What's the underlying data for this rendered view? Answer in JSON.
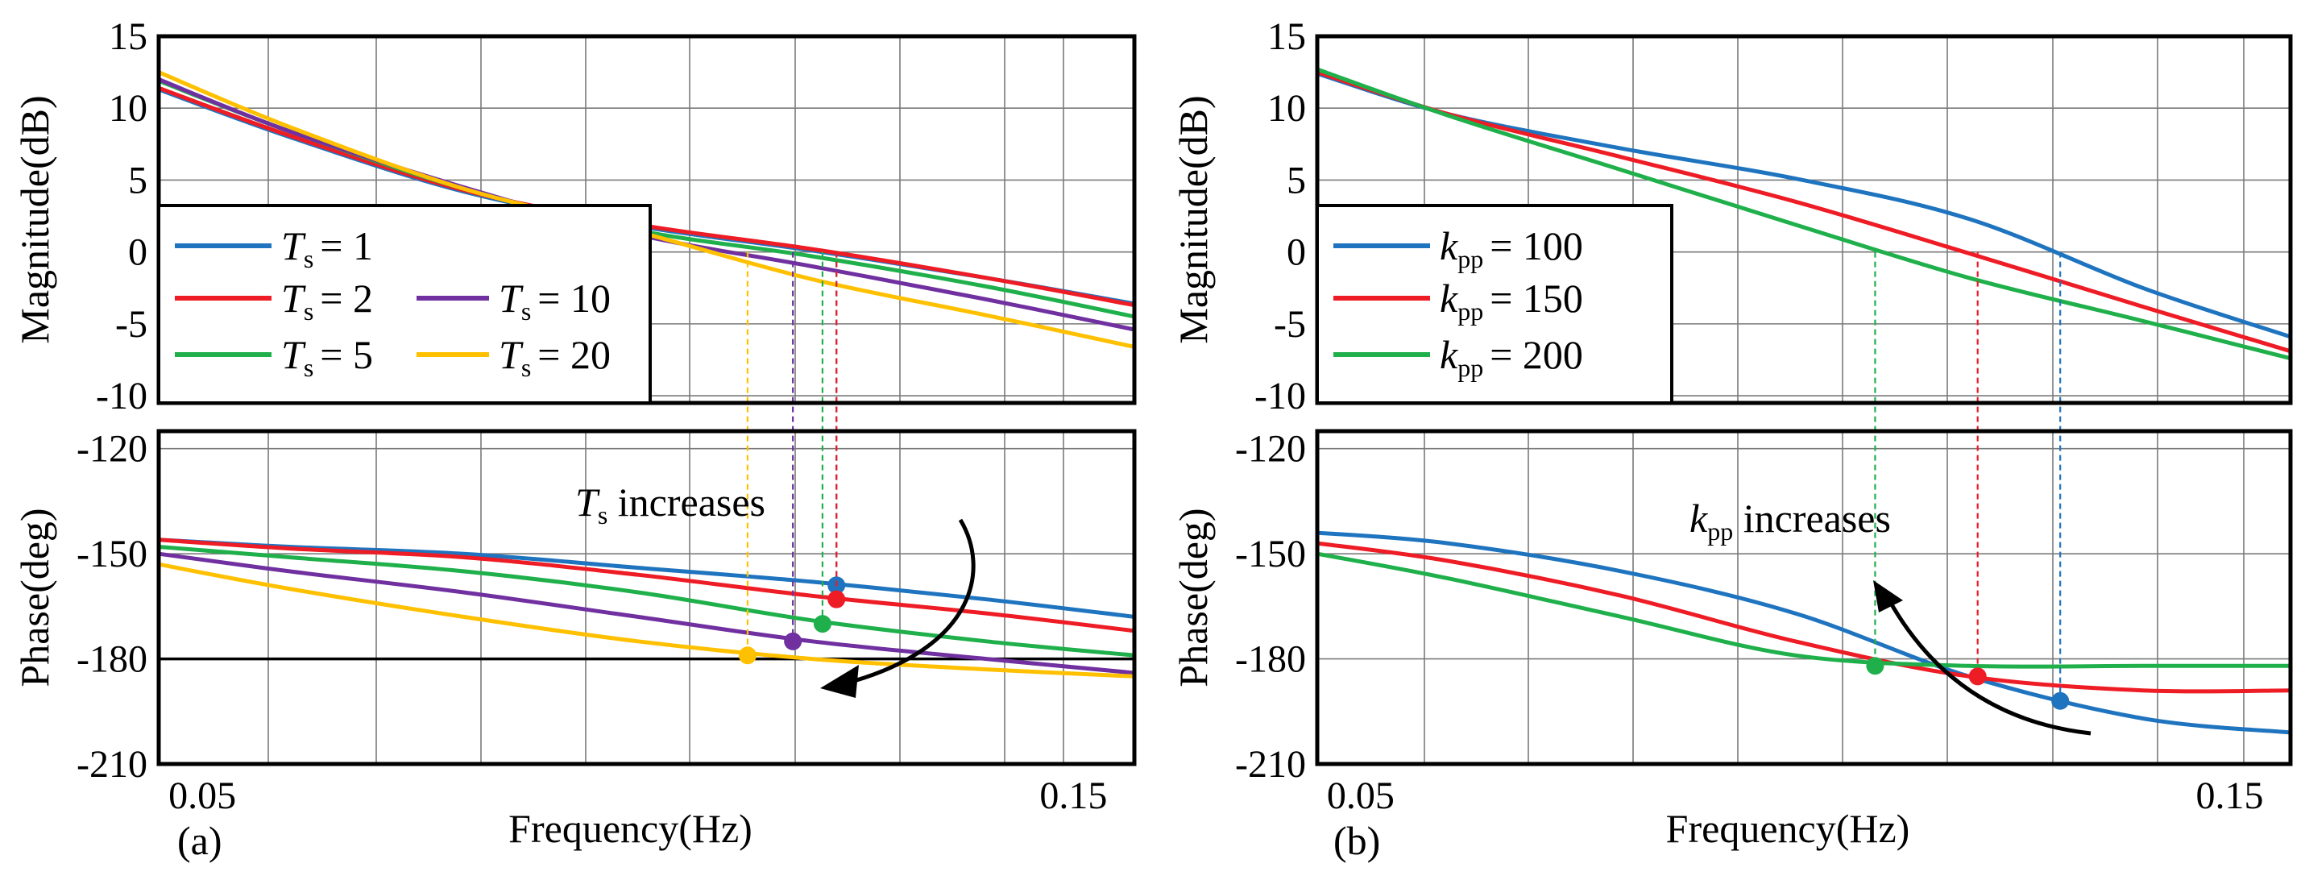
{
  "chart_data": [
    {
      "type": "line",
      "panel_label": "(a)",
      "xlabel": "Frequency(Hz)",
      "xlim": [
        0.045,
        0.157
      ],
      "x_ticks": [
        {
          "value": 0.05,
          "label": "0.05"
        },
        {
          "value": 0.15,
          "label": "0.15"
        }
      ],
      "magnitude": {
        "ylabel": "Magnitude(dB)",
        "ylim": [
          -10.5,
          15
        ],
        "y_ticks": [
          15,
          10,
          5,
          0,
          -5,
          -10
        ],
        "grid": true
      },
      "phase": {
        "ylabel": "Phase(deg)",
        "ylim": [
          -210,
          -115
        ],
        "y_ticks": [
          -120,
          -150,
          -180,
          -210
        ],
        "grid": true,
        "reference_line": -180
      },
      "legend": {
        "symbol": "T",
        "subscript": "s",
        "placement": "center-left"
      },
      "series": [
        {
          "name": "T_s = 1",
          "legend_value": "= 1",
          "color": "#1f74bf",
          "crossover_hz": 0.1228,
          "phase_at_crossover": -159,
          "mag_points": [
            [
              0.045,
              11.3
            ],
            [
              0.06,
              8.0
            ],
            [
              0.08,
              4.2
            ],
            [
              0.1,
              1.8
            ],
            [
              0.12,
              0.1
            ],
            [
              0.14,
              -1.8
            ],
            [
              0.157,
              -3.6
            ]
          ],
          "phase_points": [
            [
              0.045,
              -146
            ],
            [
              0.06,
              -148
            ],
            [
              0.08,
              -150
            ],
            [
              0.1,
              -154
            ],
            [
              0.12,
              -158
            ],
            [
              0.14,
              -163
            ],
            [
              0.157,
              -168
            ]
          ]
        },
        {
          "name": "T_s = 2",
          "legend_value": "= 2",
          "color": "#ee1c25",
          "crossover_hz": 0.1228,
          "phase_at_crossover": -163,
          "mag_points": [
            [
              0.045,
              11.4
            ],
            [
              0.06,
              8.1
            ],
            [
              0.08,
              4.3
            ],
            [
              0.1,
              1.9
            ],
            [
              0.12,
              0.2
            ],
            [
              0.14,
              -1.8
            ],
            [
              0.157,
              -3.7
            ]
          ],
          "phase_points": [
            [
              0.045,
              -146
            ],
            [
              0.06,
              -148.5
            ],
            [
              0.08,
              -151
            ],
            [
              0.1,
              -156
            ],
            [
              0.12,
              -162
            ],
            [
              0.14,
              -167
            ],
            [
              0.157,
              -172
            ]
          ]
        },
        {
          "name": "T_s = 5",
          "legend_value": "= 5",
          "color": "#1fb04b",
          "crossover_hz": 0.1212,
          "phase_at_crossover": -170,
          "mag_points": [
            [
              0.045,
              11.9
            ],
            [
              0.06,
              8.4
            ],
            [
              0.08,
              4.4
            ],
            [
              0.1,
              1.5
            ],
            [
              0.12,
              -0.3
            ],
            [
              0.14,
              -2.4
            ],
            [
              0.157,
              -4.5
            ]
          ],
          "phase_points": [
            [
              0.045,
              -148
            ],
            [
              0.06,
              -151
            ],
            [
              0.08,
              -155
            ],
            [
              0.1,
              -161
            ],
            [
              0.12,
              -169
            ],
            [
              0.14,
              -175
            ],
            [
              0.157,
              -179
            ]
          ]
        },
        {
          "name": "T_s = 10",
          "legend_value": "= 10",
          "color": "#7030a0",
          "crossover_hz": 0.1178,
          "phase_at_crossover": -175,
          "mag_points": [
            [
              0.045,
              12.0
            ],
            [
              0.06,
              8.4
            ],
            [
              0.08,
              4.5
            ],
            [
              0.1,
              1.2
            ],
            [
              0.12,
              -1.0
            ],
            [
              0.14,
              -3.3
            ],
            [
              0.157,
              -5.4
            ]
          ],
          "phase_points": [
            [
              0.045,
              -150
            ],
            [
              0.06,
              -155
            ],
            [
              0.08,
              -161
            ],
            [
              0.1,
              -168
            ],
            [
              0.12,
              -175
            ],
            [
              0.14,
              -180
            ],
            [
              0.157,
              -184
            ]
          ]
        },
        {
          "name": "T_s = 20",
          "legend_value": "= 20",
          "color": "#ffc000",
          "crossover_hz": 0.1126,
          "phase_at_crossover": -179,
          "mag_points": [
            [
              0.045,
              12.5
            ],
            [
              0.06,
              8.7
            ],
            [
              0.08,
              4.4
            ],
            [
              0.1,
              1.4
            ],
            [
              0.12,
              -1.9
            ],
            [
              0.14,
              -4.4
            ],
            [
              0.157,
              -6.6
            ]
          ],
          "phase_points": [
            [
              0.045,
              -153
            ],
            [
              0.06,
              -160
            ],
            [
              0.08,
              -168
            ],
            [
              0.1,
              -175
            ],
            [
              0.12,
              -180
            ],
            [
              0.14,
              -183
            ],
            [
              0.157,
              -185
            ]
          ]
        }
      ],
      "annotation": {
        "symbol": "T",
        "subscript": "s",
        "text": " increases"
      }
    },
    {
      "type": "line",
      "panel_label": "(b)",
      "xlabel": "Frequency(Hz)",
      "xlim": [
        0.045,
        0.157
      ],
      "x_ticks": [
        {
          "value": 0.05,
          "label": "0.05"
        },
        {
          "value": 0.15,
          "label": "0.15"
        }
      ],
      "magnitude": {
        "ylabel": "Magnitude(dB)",
        "ylim": [
          -10.5,
          15
        ],
        "y_ticks": [
          15,
          10,
          5,
          0,
          -5,
          -10
        ],
        "grid": true
      },
      "phase": {
        "ylabel": "Phase(deg)",
        "ylim": [
          -210,
          -115
        ],
        "y_ticks": [
          -120,
          -150,
          -180,
          -210
        ],
        "grid": true
      },
      "legend": {
        "symbol": "k",
        "subscript": "pp",
        "placement": "center-left"
      },
      "series": [
        {
          "name": "k_pp = 100",
          "legend_value": "= 100",
          "color": "#1f74bf",
          "crossover_hz": 0.1305,
          "phase_at_crossover": -192,
          "mag_points": [
            [
              0.045,
              12.4
            ],
            [
              0.06,
              9.6
            ],
            [
              0.08,
              7.2
            ],
            [
              0.1,
              5.1
            ],
            [
              0.12,
              2.3
            ],
            [
              0.14,
              -2.5
            ],
            [
              0.157,
              -5.9
            ]
          ],
          "phase_points": [
            [
              0.045,
              -144
            ],
            [
              0.06,
              -147
            ],
            [
              0.08,
              -155
            ],
            [
              0.1,
              -167
            ],
            [
              0.12,
              -185
            ],
            [
              0.14,
              -197
            ],
            [
              0.157,
              -201
            ]
          ]
        },
        {
          "name": "k_pp = 150",
          "legend_value": "= 150",
          "color": "#ee1c25",
          "crossover_hz": 0.121,
          "phase_at_crossover": -185,
          "mag_points": [
            [
              0.045,
              12.5
            ],
            [
              0.06,
              9.6
            ],
            [
              0.08,
              6.6
            ],
            [
              0.1,
              3.5
            ],
            [
              0.12,
              -0.1
            ],
            [
              0.14,
              -3.8
            ],
            [
              0.157,
              -6.9
            ]
          ],
          "phase_points": [
            [
              0.045,
              -147
            ],
            [
              0.06,
              -152
            ],
            [
              0.08,
              -162
            ],
            [
              0.1,
              -175
            ],
            [
              0.12,
              -185
            ],
            [
              0.14,
              -189
            ],
            [
              0.157,
              -189
            ]
          ]
        },
        {
          "name": "k_pp = 200",
          "legend_value": "= 200",
          "color": "#1fb04b",
          "crossover_hz": 0.1092,
          "phase_at_crossover": -182,
          "mag_points": [
            [
              0.045,
              12.7
            ],
            [
              0.06,
              9.5
            ],
            [
              0.08,
              5.7
            ],
            [
              0.1,
              1.9
            ],
            [
              0.12,
              -1.8
            ],
            [
              0.14,
              -4.8
            ],
            [
              0.157,
              -7.4
            ]
          ],
          "phase_points": [
            [
              0.045,
              -150
            ],
            [
              0.06,
              -157
            ],
            [
              0.08,
              -168
            ],
            [
              0.1,
              -179
            ],
            [
              0.12,
              -182
            ],
            [
              0.14,
              -182
            ],
            [
              0.157,
              -182
            ]
          ]
        }
      ],
      "annotation": {
        "symbol": "k",
        "subscript": "pp",
        "text": " increases"
      }
    }
  ]
}
